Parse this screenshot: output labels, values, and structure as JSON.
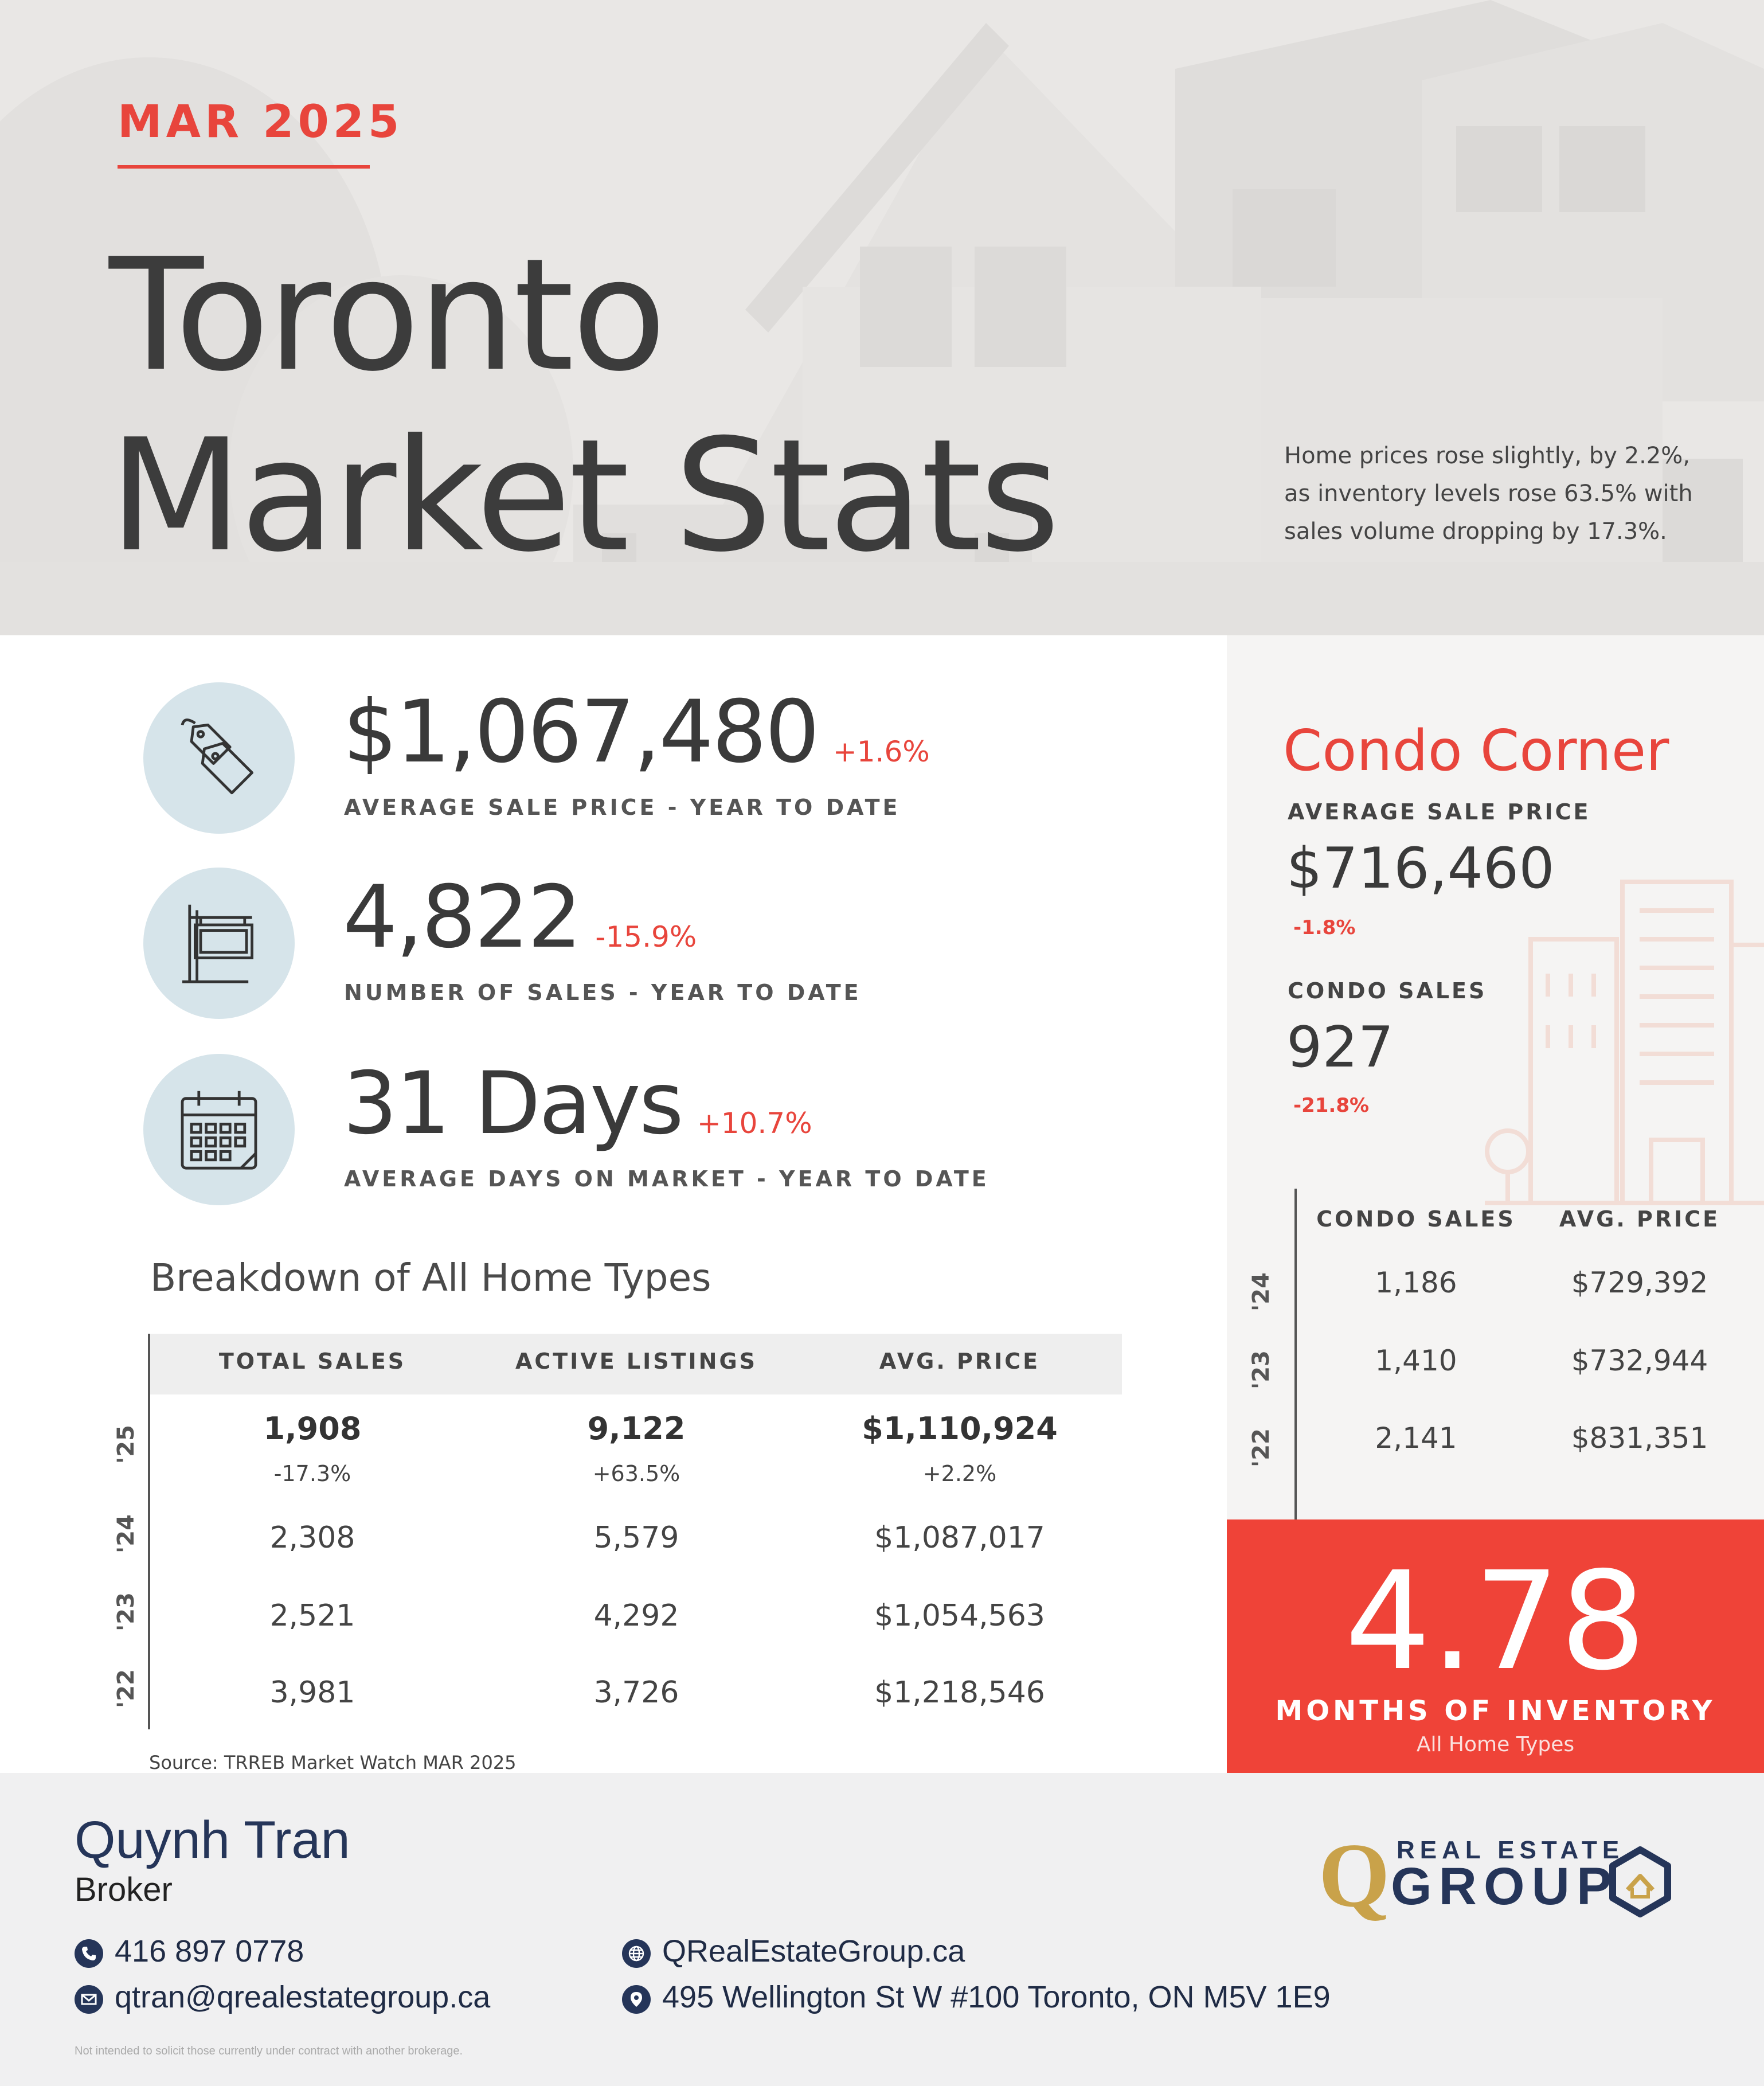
{
  "hero": {
    "month": "MAR 2025",
    "title_line1": "Toronto",
    "title_line2": "Market Stats",
    "summary": "Home prices rose slightly, by 2.2%, as inventory levels rose 63.5% with sales volume dropping by 17.3%."
  },
  "stats": [
    {
      "icon": "price-tag-icon",
      "value": "$1,067,480",
      "change": "+1.6%",
      "label": "AVERAGE SALE PRICE - YEAR TO DATE"
    },
    {
      "icon": "sale-sign-icon",
      "value": "4,822",
      "change": "-15.9%",
      "label": "NUMBER OF SALES - YEAR TO DATE"
    },
    {
      "icon": "calendar-icon",
      "value": "31 Days",
      "change": "+10.7%",
      "label": "AVERAGE DAYS ON MARKET - YEAR TO DATE"
    }
  ],
  "breakdown": {
    "title": "Breakdown of All Home Types",
    "headers": [
      "TOTAL SALES",
      "ACTIVE LISTINGS",
      "AVG. PRICE"
    ],
    "rows": [
      {
        "year": "'25",
        "total_sales": "1,908",
        "total_sales_change": "-17.3%",
        "active_listings": "9,122",
        "active_listings_change": "+63.5%",
        "avg_price": "$1,110,924",
        "avg_price_change": "+2.2%"
      },
      {
        "year": "'24",
        "total_sales": "2,308",
        "active_listings": "5,579",
        "avg_price": "$1,087,017"
      },
      {
        "year": "'23",
        "total_sales": "2,521",
        "active_listings": "4,292",
        "avg_price": "$1,054,563"
      },
      {
        "year": "'22",
        "total_sales": "3,981",
        "active_listings": "3,726",
        "avg_price": "$1,218,546"
      }
    ],
    "source": "Source: TRREB Market Watch MAR 2025"
  },
  "condo": {
    "title": "Condo Corner",
    "avg_price_label": "AVERAGE SALE PRICE",
    "avg_price_value": "$716,460",
    "avg_price_change": "-1.8%",
    "sales_label": "CONDO SALES",
    "sales_value": "927",
    "sales_change": "-21.8%",
    "table_headers": [
      "CONDO SALES",
      "AVG. PRICE"
    ],
    "rows": [
      {
        "year": "'24",
        "sales": "1,186",
        "avg_price": "$729,392"
      },
      {
        "year": "'23",
        "sales": "1,410",
        "avg_price": "$732,944"
      },
      {
        "year": "'22",
        "sales": "2,141",
        "avg_price": "$831,351"
      }
    ]
  },
  "inventory": {
    "value": "4.78",
    "label": "MONTHS OF INVENTORY",
    "sublabel": "All Home Types"
  },
  "footer": {
    "name": "Quynh Tran",
    "title": "Broker",
    "phone": "416 897 0778",
    "email": "qtran@qrealestategroup.ca",
    "website": "QRealEstateGroup.ca",
    "address": "495 Wellington St W #100 Toronto, ON M5V 1E9",
    "disclaimer": "Not intended to solicit those currently under contract with another brokerage.",
    "logo_letter": "Q",
    "logo_top": "REAL ESTATE",
    "logo_bottom": "GROUP"
  },
  "colors": {
    "accent_red": "#e8453c",
    "navy": "#253559",
    "gold": "#c9a24a",
    "icon_circle": "#d6e4ea"
  }
}
